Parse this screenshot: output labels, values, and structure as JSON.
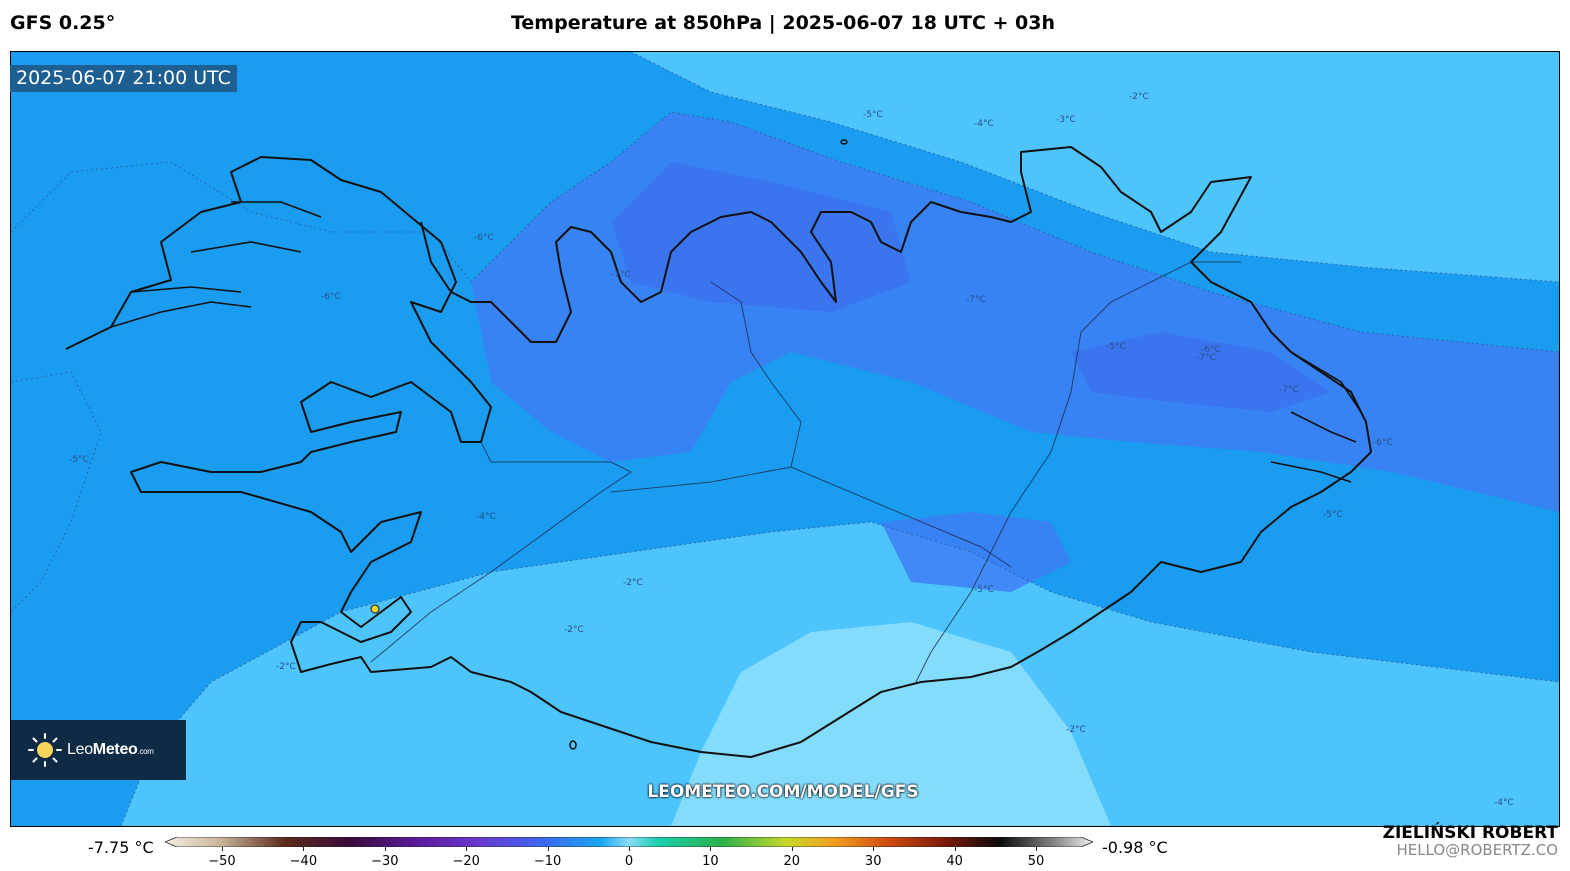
{
  "header": {
    "model": "GFS 0.25°",
    "title": "Temperature at 850hPa | 2025-06-07 18 UTC + 03h"
  },
  "map": {
    "valid_time": "2025-06-07 21:00 UTC",
    "watermark": "LEOMETEO.COM/MODEL/GFS",
    "contour_labels": [
      "-2°C",
      "-3°C",
      "-4°C",
      "-5°C",
      "-6°C",
      "-7°C",
      "-6°C",
      "-7°C",
      "-7°C",
      "-7°C",
      "-6°C",
      "-5°C",
      "-4°C",
      "-5°C",
      "-2°C",
      "-2°C",
      "-2°C",
      "-4°C",
      "-5°C",
      "-6°C",
      "-5°C",
      "-2°C"
    ],
    "station_marker_color": "#f2d230"
  },
  "logo": {
    "icon": "sun-icon",
    "name_light": "Leo",
    "name_bold": "Meteo",
    "suffix": ".com"
  },
  "colorbar": {
    "min_label": "-7.75 °C",
    "max_label": "-0.98 °C",
    "ticks": [
      "−50",
      "−40",
      "−30",
      "−20",
      "−10",
      "0",
      "10",
      "20",
      "30",
      "40",
      "50"
    ],
    "tick_values": [
      -50,
      -40,
      -30,
      -20,
      -10,
      0,
      10,
      20,
      30,
      40,
      50
    ],
    "range": [
      -57,
      57
    ]
  },
  "author": {
    "name": "ZIELIŃSKI ROBERT",
    "email": "HELLO@ROBERTZ.CO"
  },
  "colors": {
    "band_cold": "#3e7ff5",
    "band_mid": "#1a9df0",
    "band_mild": "#4dc4fb",
    "band_warm": "#84dcfc"
  }
}
